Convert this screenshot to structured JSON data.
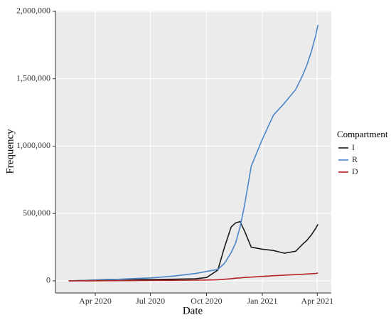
{
  "chart_data": {
    "type": "line",
    "x_label": "Date",
    "y_label": "Frequency",
    "legend_title": "Compartment",
    "legend_position": "right",
    "grid": true,
    "x": [
      2020.13,
      2020.2,
      2020.3,
      2020.4,
      2020.5,
      2020.6,
      2020.7,
      2020.75,
      2020.8,
      2020.83,
      2020.86,
      2020.88,
      2020.9,
      2020.92,
      2020.95,
      2021.0,
      2021.05,
      2021.1,
      2021.15,
      2021.18,
      2021.2,
      2021.22,
      2021.24,
      2021.25
    ],
    "series": [
      {
        "name": "I",
        "color": "#1a1a1a",
        "values": [
          0,
          3000,
          10000,
          12000,
          10000,
          12000,
          15000,
          25000,
          80000,
          250000,
          400000,
          430000,
          440000,
          370000,
          250000,
          235000,
          225000,
          205000,
          220000,
          270000,
          300000,
          340000,
          390000,
          420000
        ]
      },
      {
        "name": "R",
        "color": "#4a86c8",
        "values": [
          0,
          2000,
          8000,
          15000,
          22000,
          35000,
          55000,
          70000,
          85000,
          130000,
          210000,
          280000,
          400000,
          560000,
          850000,
          1050000,
          1230000,
          1320000,
          1420000,
          1520000,
          1600000,
          1700000,
          1820000,
          1900000
        ]
      },
      {
        "name": "D",
        "color": "#b22222",
        "values": [
          0,
          0,
          1000,
          2000,
          3000,
          4000,
          5000,
          6000,
          8000,
          12000,
          16000,
          20000,
          22000,
          25000,
          28000,
          33000,
          38000,
          42000,
          46000,
          49000,
          51000,
          53000,
          55000,
          58000
        ]
      }
    ],
    "xlim": [
      2020.07,
      2021.31
    ],
    "xticks": [
      {
        "value": 2020.249,
        "label": "Apr 2020"
      },
      {
        "value": 2020.497,
        "label": "Jul 2020"
      },
      {
        "value": 2020.749,
        "label": "Oct 2020"
      },
      {
        "value": 2021.0,
        "label": "Jan 2021"
      },
      {
        "value": 2021.247,
        "label": "Apr 2021"
      }
    ],
    "ylim": [
      -90000,
      2005000
    ],
    "yticks": [
      0,
      {
        "value": 500000,
        "label": "500,000"
      },
      {
        "value": 1000000,
        "label": "1,000,000"
      },
      {
        "value": 1500000,
        "label": "1,500,000"
      },
      {
        "value": 2000000,
        "label": "2,000,000"
      }
    ]
  }
}
